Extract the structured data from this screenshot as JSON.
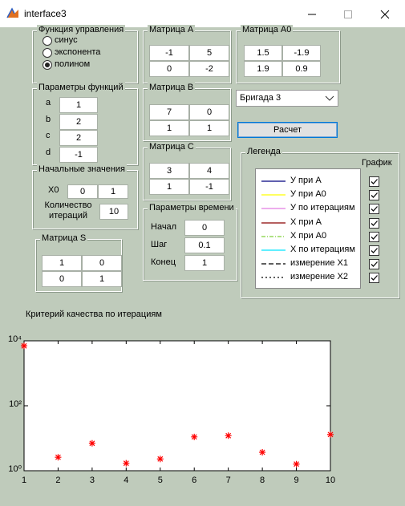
{
  "window": {
    "title": "interface3"
  },
  "control_function": {
    "title": "Функция управления",
    "options": [
      "синус",
      "экспонента",
      "полином"
    ],
    "selected_index": 2
  },
  "function_params": {
    "title": "Параметры функций",
    "labels": [
      "a",
      "b",
      "c",
      "d"
    ],
    "values": [
      1,
      2,
      2,
      -1
    ]
  },
  "initial_values": {
    "title": "Начальные значения",
    "x0_label": "X0",
    "x0": [
      0,
      1
    ],
    "iterations_label": "Количество итераций",
    "iterations": 10
  },
  "matrix_s": {
    "title": "Матрица S",
    "rows": [
      [
        1,
        0
      ],
      [
        0,
        1
      ]
    ]
  },
  "matrix_a": {
    "title": "Матрица А",
    "rows": [
      [
        -1,
        5
      ],
      [
        0,
        -2
      ]
    ]
  },
  "matrix_a0": {
    "title": "Матрица А0",
    "rows": [
      [
        1.5,
        -1.9
      ],
      [
        1.9,
        0.9
      ]
    ]
  },
  "matrix_b": {
    "title": "Матрица В",
    "rows": [
      [
        7,
        0
      ],
      [
        1,
        1
      ]
    ]
  },
  "matrix_c": {
    "title": "Матрица С",
    "rows": [
      [
        3,
        4
      ],
      [
        1,
        -1
      ]
    ]
  },
  "brigade": {
    "selected": "Бригада 3"
  },
  "calc_button": "Расчет",
  "time_params": {
    "title": "Параметры времени",
    "labels": [
      "Начал",
      "Шаг",
      "Конец"
    ],
    "values": [
      0,
      0.1,
      1
    ]
  },
  "legend": {
    "title": "Легенда",
    "plot_label": "График",
    "entries": [
      {
        "name": "У при А",
        "color": "#00007f",
        "style": "solid",
        "checked": true
      },
      {
        "name": "У при А0",
        "color": "#ffff00",
        "style": "solid",
        "checked": true
      },
      {
        "name": "У по итерациям",
        "color": "#e27ce2",
        "style": "solid",
        "checked": true
      },
      {
        "name": "Х при А",
        "color": "#8b0000",
        "style": "solid",
        "checked": true
      },
      {
        "name": "Х при А0",
        "color": "#7fd13b",
        "style": "dashdot",
        "checked": true
      },
      {
        "name": "Х по итерациям",
        "color": "#00e5ff",
        "style": "solid",
        "checked": true
      },
      {
        "name": "измерение Х1",
        "color": "#000000",
        "style": "dashed",
        "checked": true
      },
      {
        "name": "измерение Х2",
        "color": "#000000",
        "style": "dotted",
        "checked": true
      }
    ]
  },
  "chart_data": {
    "type": "scatter",
    "title": "Критерий качества по итерациям",
    "x": [
      1,
      2,
      3,
      4,
      5,
      6,
      7,
      8,
      9,
      10
    ],
    "values": [
      7000,
      2.6,
      7,
      1.7,
      2.3,
      11,
      12,
      3.7,
      1.6,
      13
    ],
    "color": "#ff0000",
    "marker": "asterisk",
    "log_y": true,
    "xlim": [
      1,
      10
    ],
    "xticks": [
      1,
      2,
      3,
      4,
      5,
      6,
      7,
      8,
      9,
      10
    ],
    "ylim": [
      1,
      10000
    ],
    "yticks": [
      {
        "value": 1,
        "label": "10⁰"
      },
      {
        "value": 100,
        "label": "10²"
      },
      {
        "value": 10000,
        "label": "10⁴"
      }
    ]
  }
}
